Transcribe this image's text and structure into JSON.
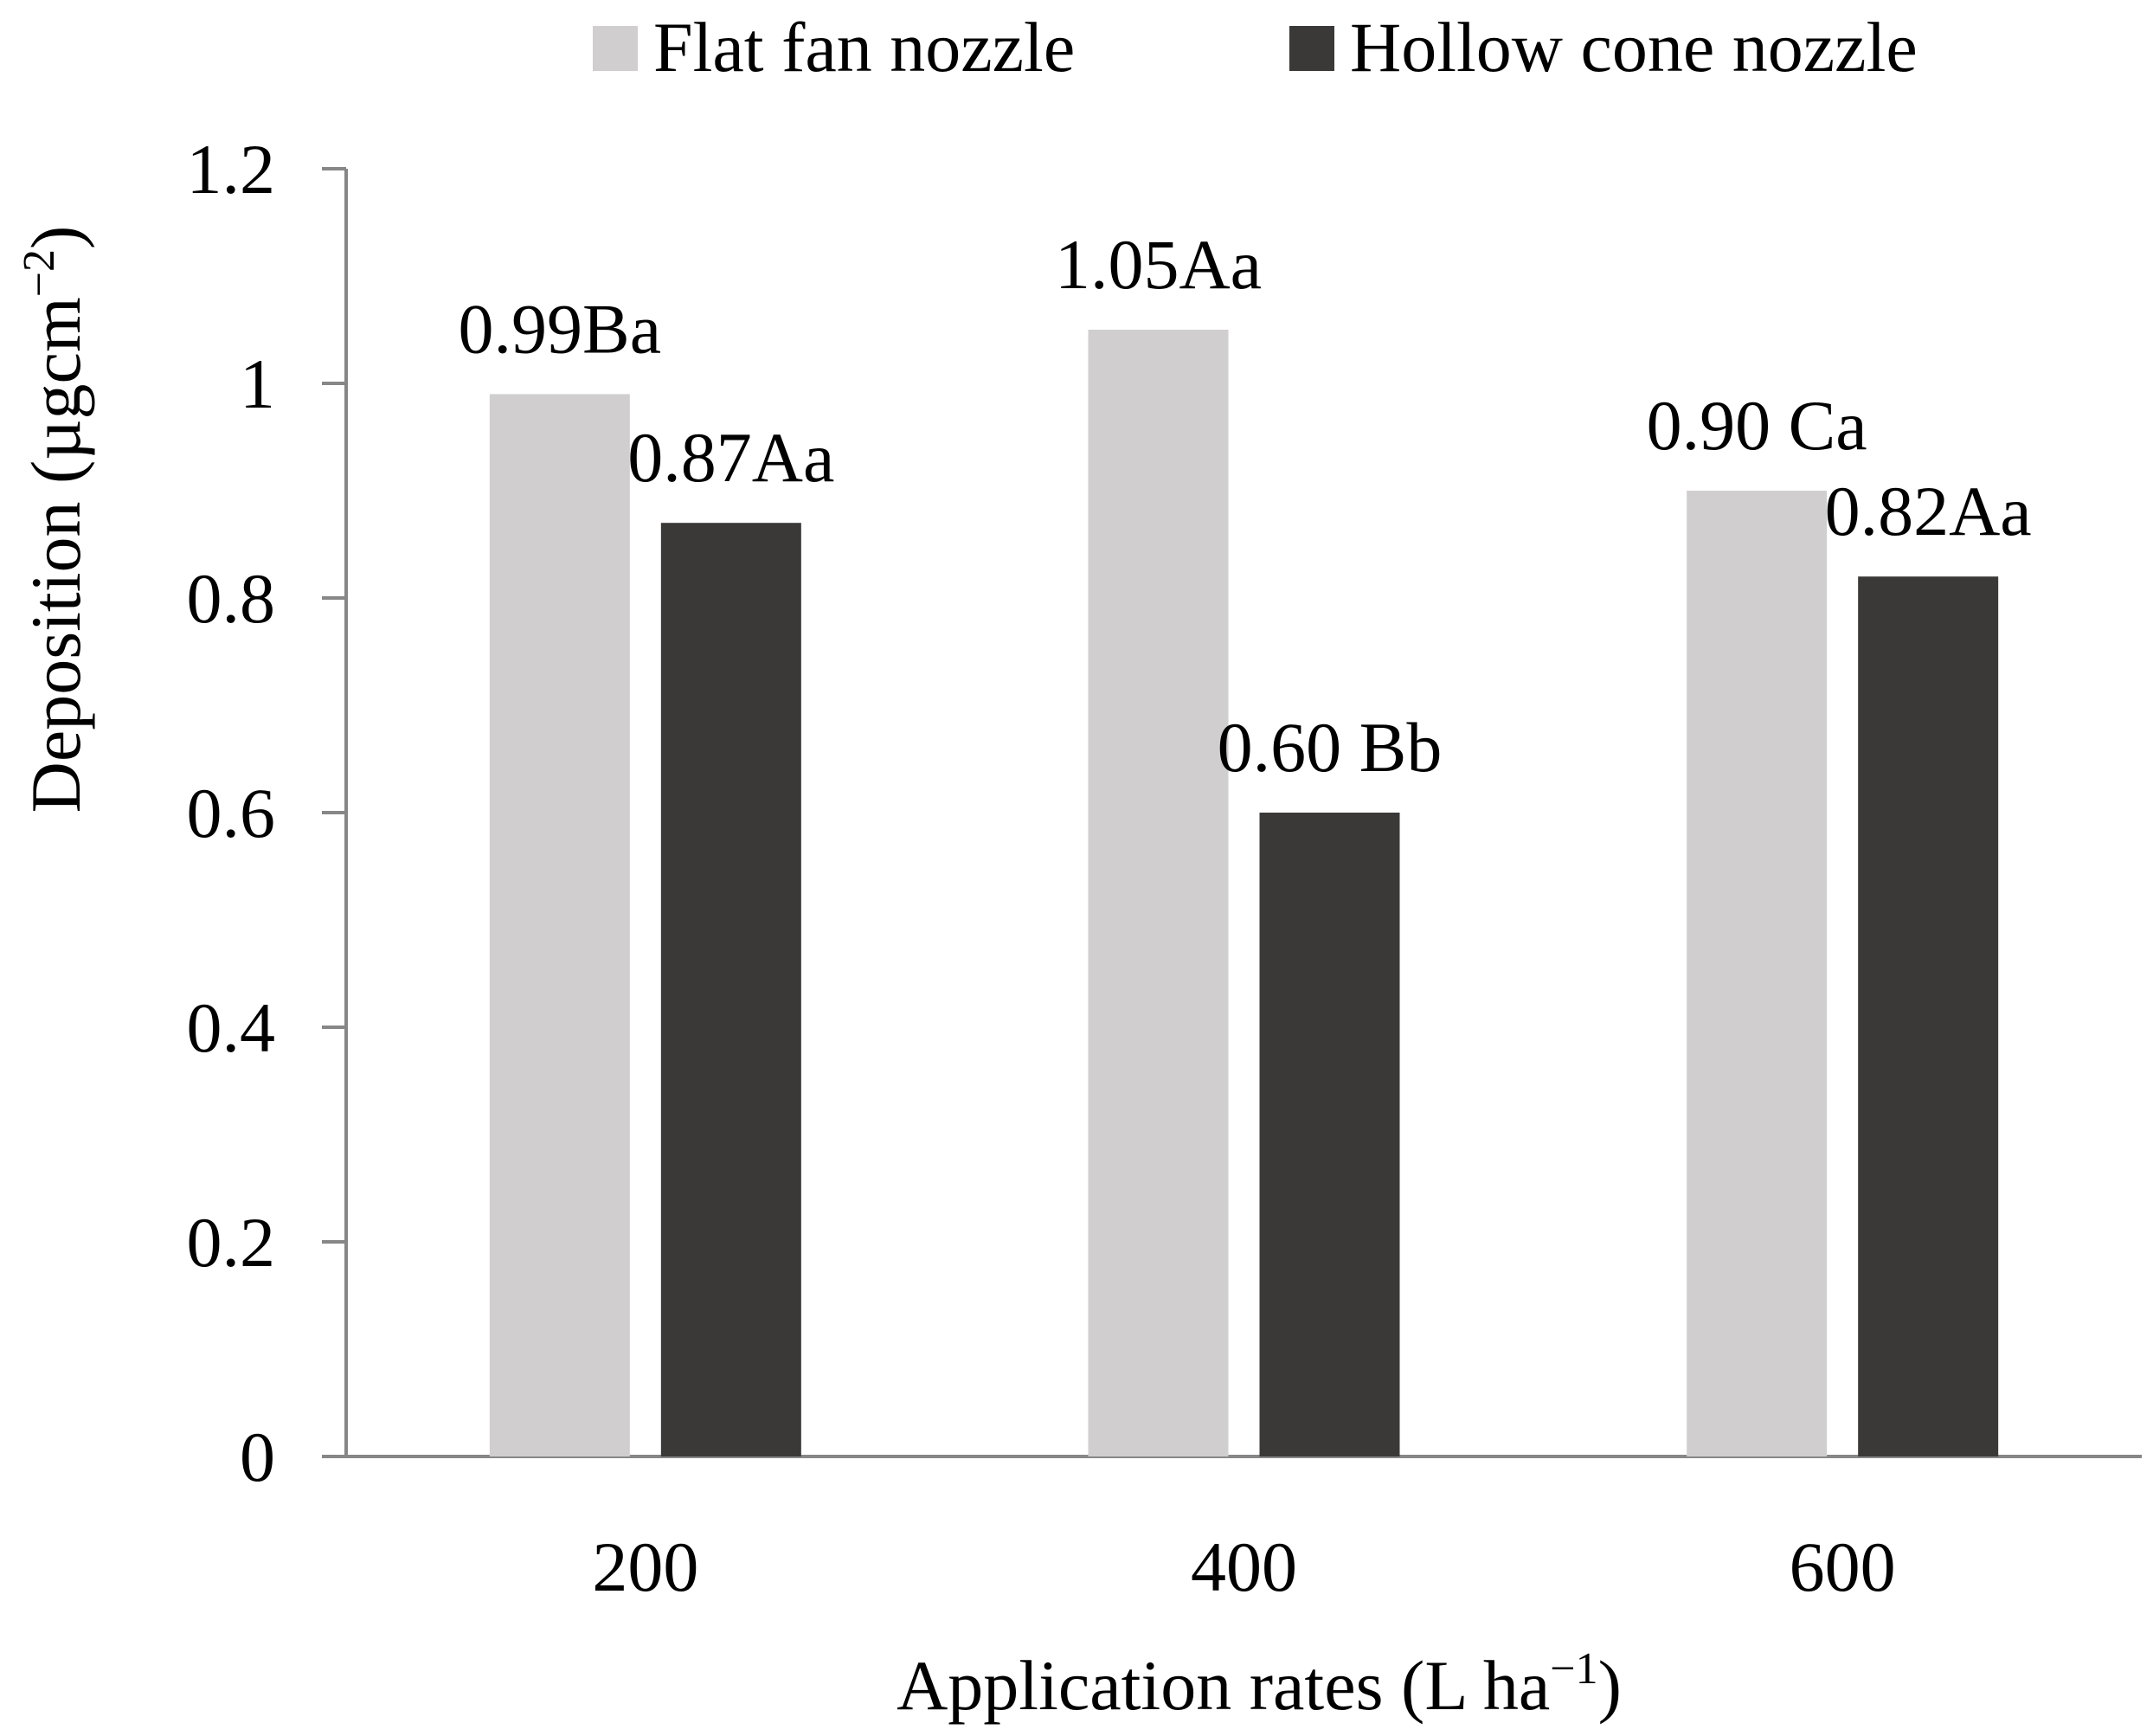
{
  "chart_data": {
    "type": "bar",
    "title": "",
    "xlabel": "Application rates (L ha",
    "xlabel_sup": "−1",
    "xlabel_close": ")",
    "ylabel": "Deposition (µgcm",
    "ylabel_sup": "−2",
    "ylabel_close": ")",
    "ylim": [
      0,
      1.2
    ],
    "yticks": [
      "0",
      "0.2",
      "0.4",
      "0.6",
      "0.8",
      "1",
      "1.2"
    ],
    "ytick_values": [
      0,
      0.2,
      0.4,
      0.6,
      0.8,
      1.0,
      1.2
    ],
    "categories": [
      "200",
      "400",
      "600"
    ],
    "series": [
      {
        "name": "Flat fan nozzle",
        "color": "#d0cece",
        "values": [
          0.99,
          1.05,
          0.9
        ],
        "labels": [
          "0.99Ba",
          "1.05Aa",
          "0.90 Ca"
        ]
      },
      {
        "name": "Hollow cone nozzle",
        "color": "#3a3938",
        "values": [
          0.87,
          0.6,
          0.82
        ],
        "labels": [
          "0.87Aa",
          "0.60 Bb",
          "0.82Aa"
        ]
      }
    ],
    "grid": false,
    "legend_position": "top-right",
    "axis_color": "#878787"
  }
}
